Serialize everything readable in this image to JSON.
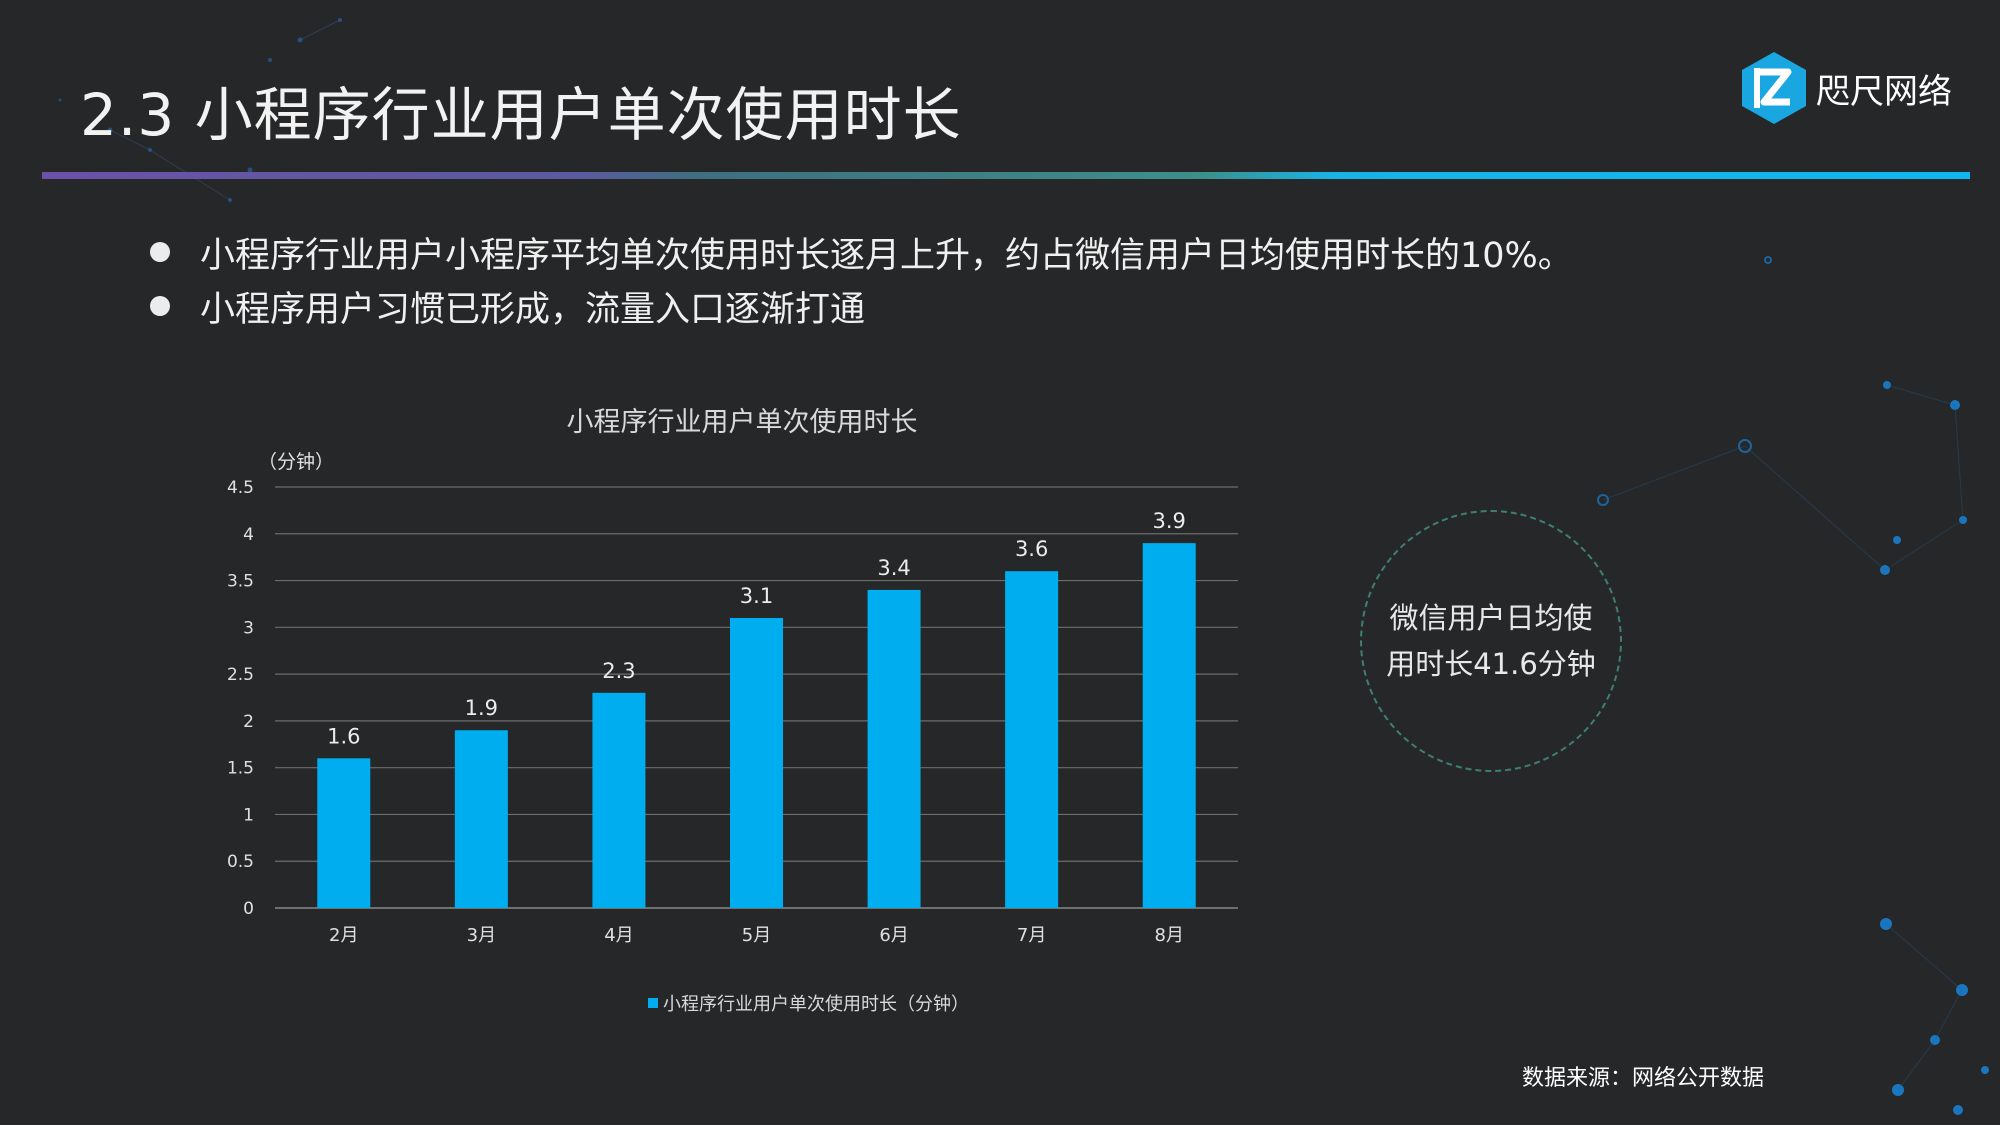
{
  "slide": {
    "title": "2.3 小程序行业用户单次使用时长",
    "logo_text": "咫尺网络",
    "bullets": [
      "小程序行业用户小程序平均单次使用时长逐月上升，约占微信用户日均使用时长的10%。",
      "小程序用户习惯已形成，流量入口逐渐打通"
    ],
    "callout_lines": [
      "微信用户日均使",
      "用时长41.6分钟"
    ],
    "source": "数据来源：网络公开数据"
  },
  "colors": {
    "background": "#262728",
    "bar": "#00aeef",
    "axis_text": "#e0e0e0",
    "gridline": "#6d6d6d",
    "callout_border": "#3f7f6f"
  },
  "icons": {
    "logo": "brand-z-hexagon-icon"
  },
  "chart_data": {
    "type": "bar",
    "title": "小程序行业用户单次使用时长",
    "ylabel": "（分钟）",
    "categories": [
      "2月",
      "3月",
      "4月",
      "5月",
      "6月",
      "7月",
      "8月"
    ],
    "series": [
      {
        "name": "小程序行业用户单次使用时长（分钟）",
        "values": [
          1.6,
          1.9,
          2.3,
          3.1,
          3.4,
          3.6,
          3.9
        ]
      }
    ],
    "ylim": [
      0,
      4.5
    ],
    "yticks": [
      "0",
      "0.5",
      "1",
      "1.5",
      "2",
      "2.5",
      "3",
      "3.5",
      "4",
      "4.5"
    ],
    "grid": true,
    "legend": "bottom",
    "data_labels": true
  }
}
